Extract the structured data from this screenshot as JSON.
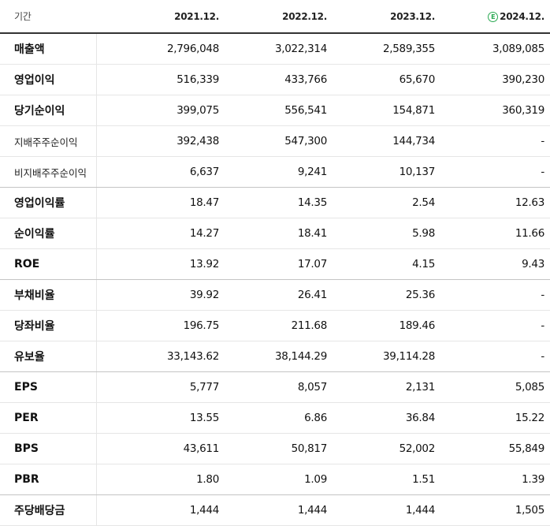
{
  "header": {
    "label": "기간",
    "periods": [
      {
        "label": "2021.12.",
        "estimate": false
      },
      {
        "label": "2022.12.",
        "estimate": false
      },
      {
        "label": "2023.12.",
        "estimate": false
      },
      {
        "label": "2024.12.",
        "estimate": true,
        "badge": "E",
        "badge_color": "#2aa952"
      }
    ]
  },
  "rows": [
    {
      "label": "매출액",
      "values": [
        "2,796,048",
        "3,022,314",
        "2,589,355",
        "3,089,085"
      ]
    },
    {
      "label": "영업이익",
      "values": [
        "516,339",
        "433,766",
        "65,670",
        "390,230"
      ]
    },
    {
      "label": "당기순이익",
      "values": [
        "399,075",
        "556,541",
        "154,871",
        "360,319"
      ]
    },
    {
      "label": "지배주주순이익",
      "values": [
        "392,438",
        "547,300",
        "144,734",
        "-"
      ]
    },
    {
      "label": "비지배주주순이익",
      "values": [
        "6,637",
        "9,241",
        "10,137",
        "-"
      ]
    },
    {
      "label": "영업이익률",
      "values": [
        "18.47",
        "14.35",
        "2.54",
        "12.63"
      ]
    },
    {
      "label": "순이익률",
      "values": [
        "14.27",
        "18.41",
        "5.98",
        "11.66"
      ]
    },
    {
      "label": "ROE",
      "values": [
        "13.92",
        "17.07",
        "4.15",
        "9.43"
      ]
    },
    {
      "label": "부채비율",
      "values": [
        "39.92",
        "26.41",
        "25.36",
        "-"
      ]
    },
    {
      "label": "당좌비율",
      "values": [
        "196.75",
        "211.68",
        "189.46",
        "-"
      ]
    },
    {
      "label": "유보율",
      "values": [
        "33,143.62",
        "38,144.29",
        "39,114.28",
        "-"
      ]
    },
    {
      "label": "EPS",
      "values": [
        "5,777",
        "8,057",
        "2,131",
        "5,085"
      ]
    },
    {
      "label": "PER",
      "values": [
        "13.55",
        "6.86",
        "36.84",
        "15.22"
      ]
    },
    {
      "label": "BPS",
      "values": [
        "43,611",
        "50,817",
        "52,002",
        "55,849"
      ]
    },
    {
      "label": "PBR",
      "values": [
        "1.80",
        "1.09",
        "1.51",
        "1.39"
      ]
    },
    {
      "label": "주당배당금",
      "values": [
        "1,444",
        "1,444",
        "1,444",
        "1,505"
      ]
    }
  ]
}
